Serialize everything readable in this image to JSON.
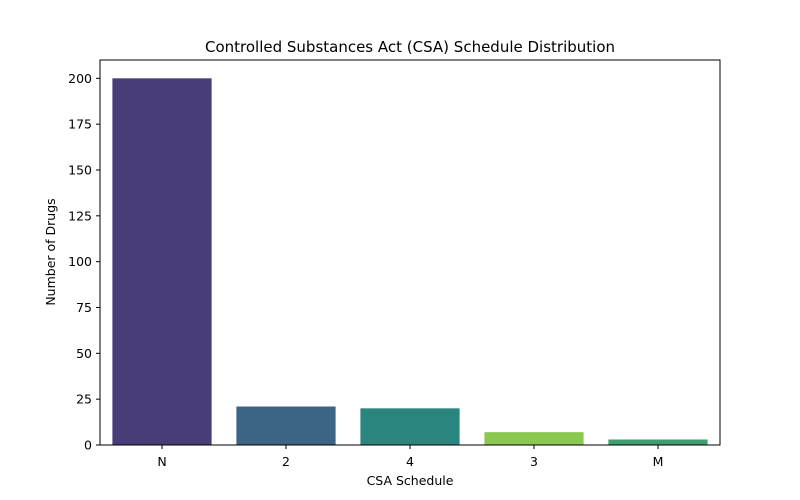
{
  "chart_data": {
    "type": "bar",
    "title": "Controlled Substances Act (CSA) Schedule Distribution",
    "xlabel": "CSA Schedule",
    "ylabel": "Number of Drugs",
    "categories": [
      "N",
      "2",
      "4",
      "3",
      "M"
    ],
    "values": [
      200,
      21,
      20,
      7,
      3
    ],
    "ylim": [
      0,
      210
    ],
    "yticks": [
      "0",
      "25",
      "50",
      "75",
      "100",
      "125",
      "150",
      "175",
      "200"
    ],
    "bar_colors": [
      "#483d78",
      "#3b6587",
      "#2a857f",
      "#8ac850",
      "#3d9e6e"
    ],
    "grid": false,
    "legend": "none"
  }
}
